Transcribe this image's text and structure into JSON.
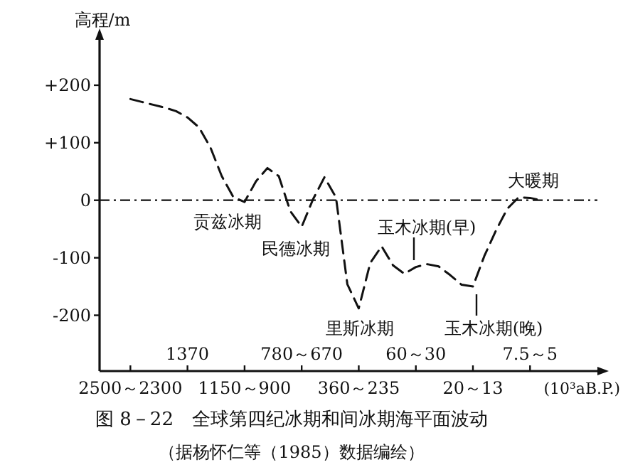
{
  "chart_data": {
    "type": "line",
    "title": "图 8－22　全球第四纪冰期和间冰期海平面波动",
    "subtitle": "（据杨怀仁等（1985）数据编绘）",
    "ylabel": "高程/m",
    "xlabel": "(10³aB.P.)",
    "categories": [
      "2500～2300",
      null,
      null,
      null,
      null,
      "1370",
      null,
      null,
      null,
      null,
      "1150～900",
      null,
      null,
      null,
      null,
      "780～670",
      null,
      null,
      null,
      null,
      "360～235",
      null,
      null,
      null,
      null,
      "60～30",
      null,
      null,
      null,
      null,
      "20～13",
      null,
      null,
      null,
      null,
      "7.5～5",
      null
    ],
    "ylim": [
      -297,
      279
    ],
    "yticks": [
      {
        "value": 200,
        "label": "+200"
      },
      {
        "value": 100,
        "label": "+100"
      },
      0,
      -100,
      -200
    ],
    "line_style": "dashed",
    "series": [
      {
        "color": "#111111",
        "values": [
          176,
          171,
          166,
          161,
          155,
          144,
          127,
          92,
          42,
          6,
          -3,
          33,
          56,
          42,
          -19,
          -46,
          2,
          40,
          5,
          -146,
          -188,
          -109,
          -80,
          -113,
          -128,
          -116,
          -111,
          -115,
          -130,
          -147,
          -150,
          -97,
          -53,
          -15,
          5,
          4,
          0
        ]
      }
    ],
    "ref_lines": [
      {
        "axis": "y",
        "value": 0,
        "line_style": "dashdot"
      }
    ],
    "annotations": [
      "贡兹冰期",
      "民德冰期",
      "里斯冰期",
      "玉木冰期(早)",
      "玉木冰期(晚)",
      "大暖期"
    ]
  }
}
